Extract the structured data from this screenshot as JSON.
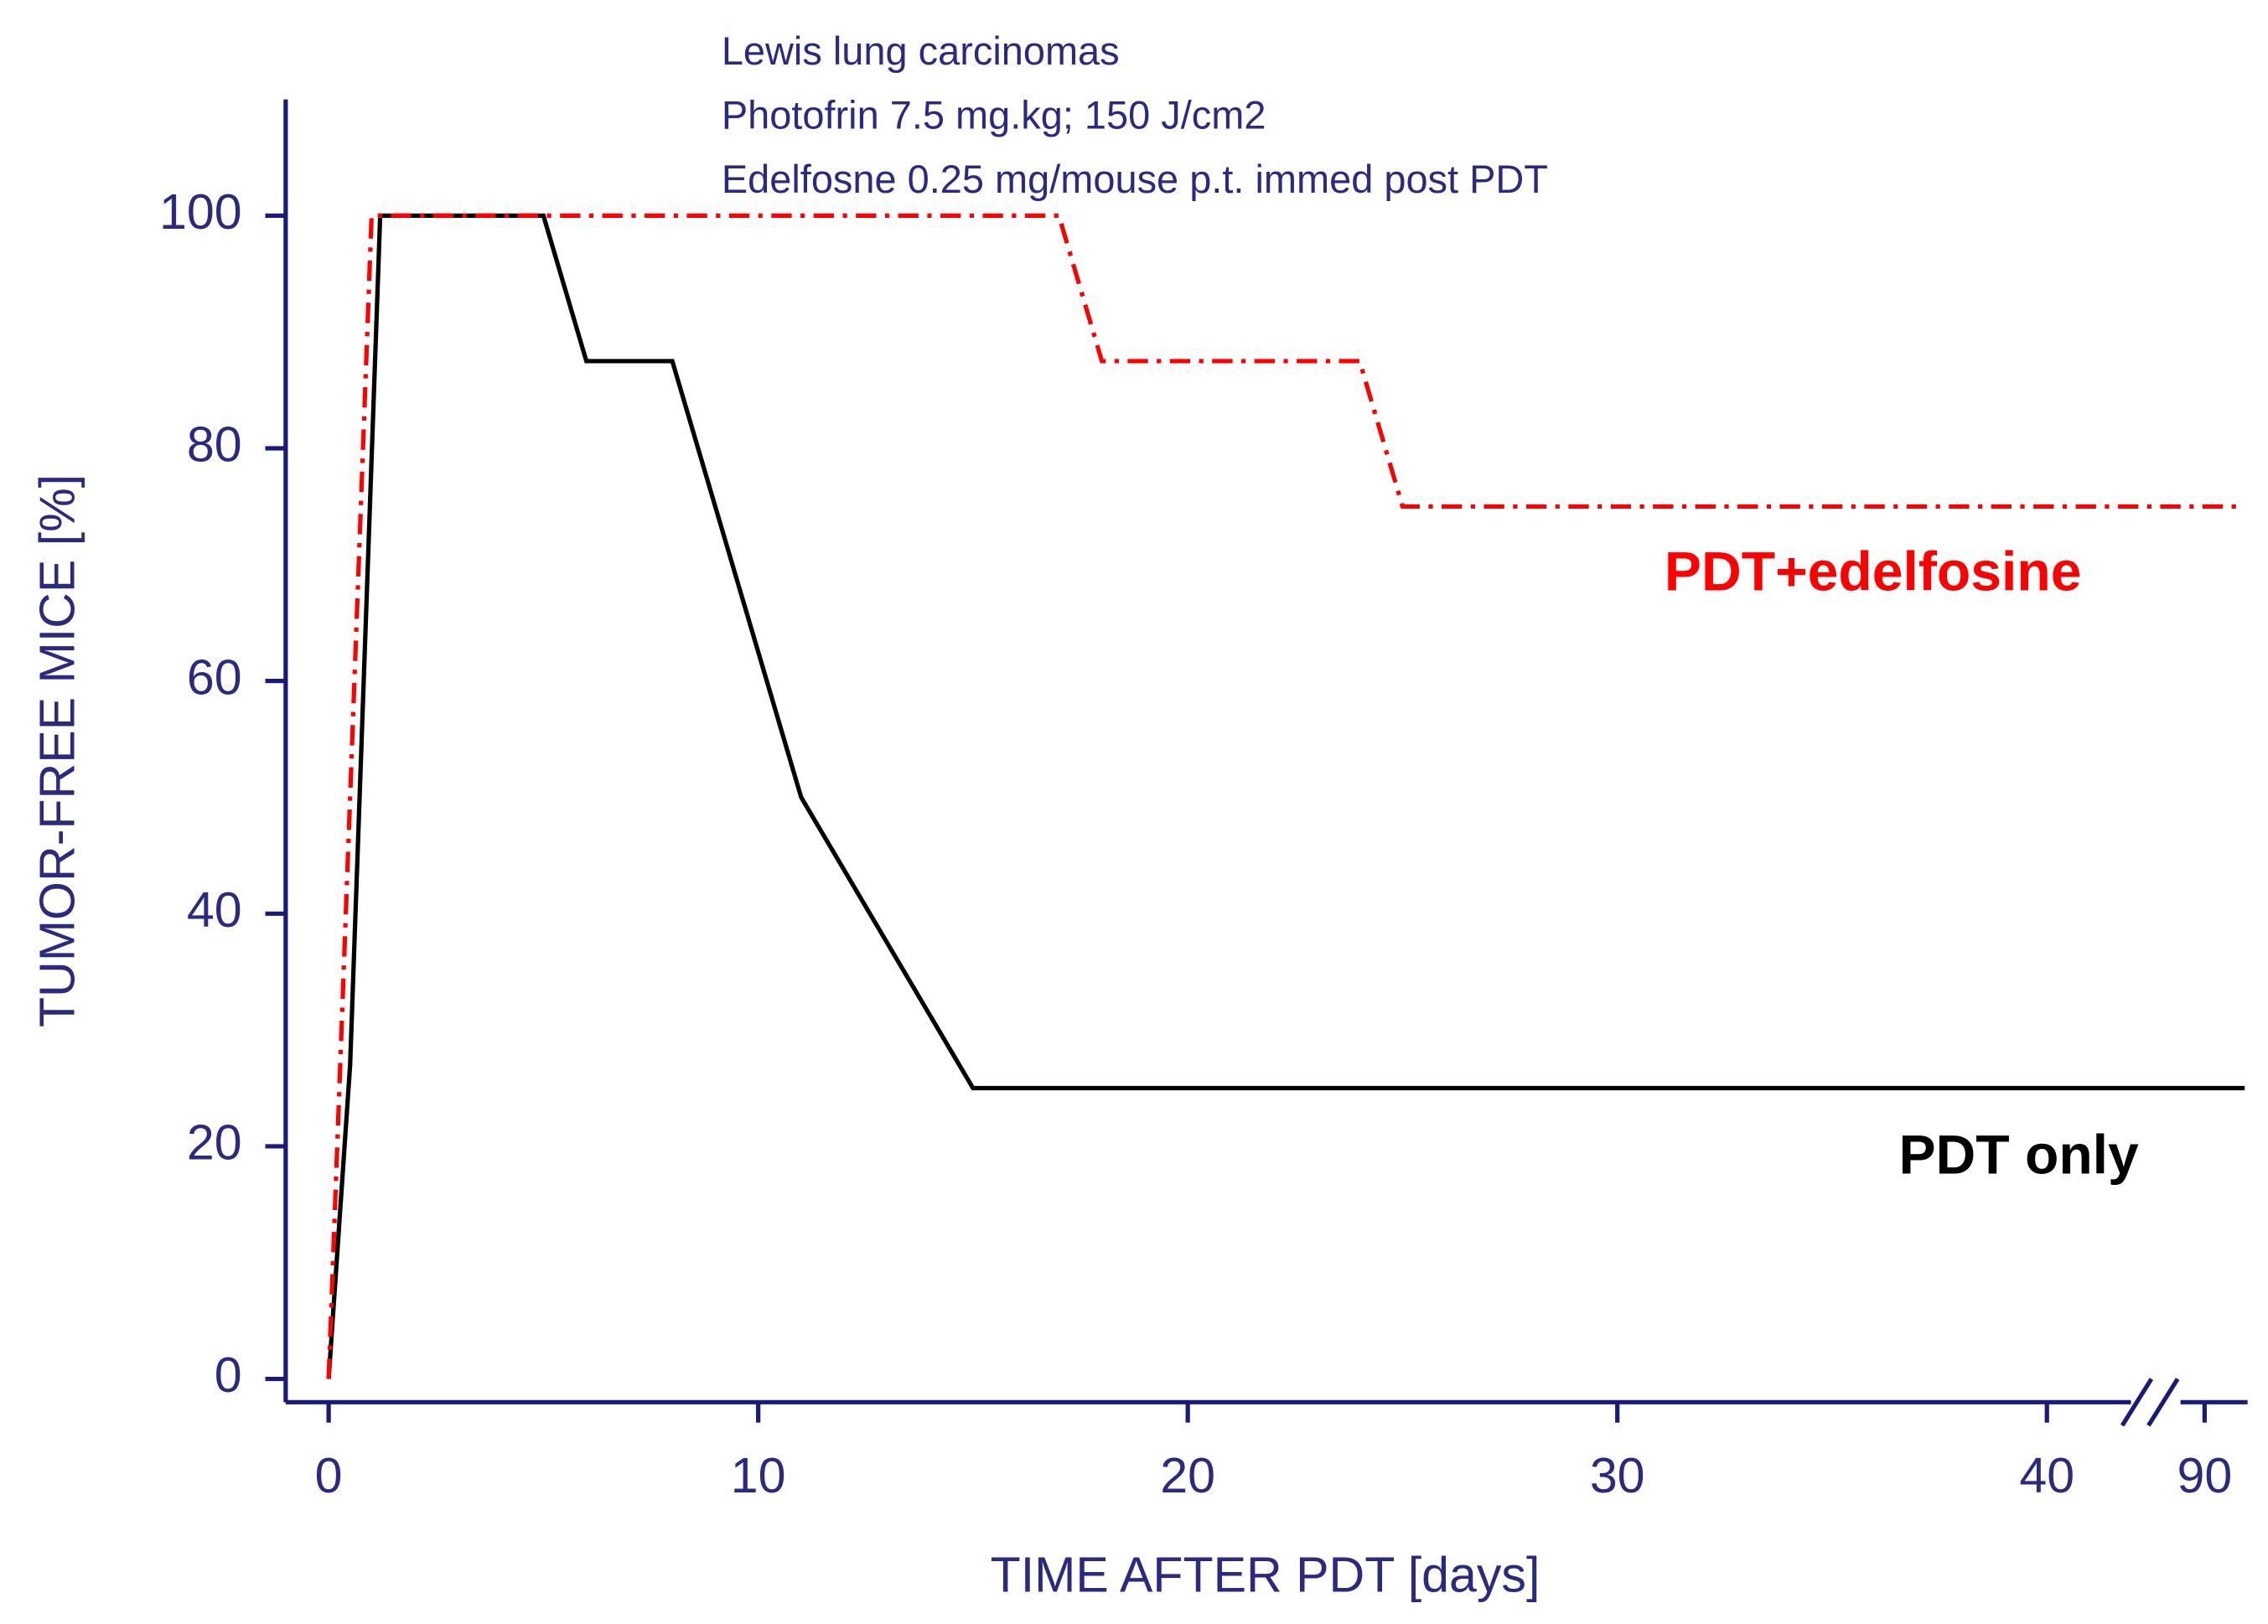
{
  "chart_data": {
    "type": "line",
    "title_lines": [
      "Lewis lung carcinomas",
      "Photofrin 7.5 mg.kg; 150 J/cm2",
      "Edelfosne 0.25 mg/mouse p.t. immed post PDT"
    ],
    "xlabel": "TIME AFTER PDT [days]",
    "ylabel": "TUMOR-FREE MICE [%]",
    "xlim": [
      -1,
      91
    ],
    "xbreak": [
      42.5,
      89
    ],
    "xticks": [
      0,
      10,
      20,
      30,
      40,
      90
    ],
    "ylim": [
      -2,
      110
    ],
    "yticks": [
      0,
      20,
      40,
      60,
      80,
      100
    ],
    "series": [
      {
        "name": "PDT only",
        "color": "#000000",
        "dash": "solid",
        "x": [
          0,
          0.5,
          1.2,
          5,
          6,
          8,
          11,
          15,
          91
        ],
        "values": [
          0,
          27,
          100,
          100,
          87.5,
          87.5,
          50,
          25,
          25
        ]
      },
      {
        "name": "PDT+edelfosine",
        "color": "#ff0000",
        "dash": "dashdot",
        "x": [
          0,
          1,
          17,
          18,
          24,
          25,
          91
        ],
        "values": [
          0,
          100,
          100,
          87.5,
          87.5,
          75,
          75
        ]
      }
    ]
  }
}
